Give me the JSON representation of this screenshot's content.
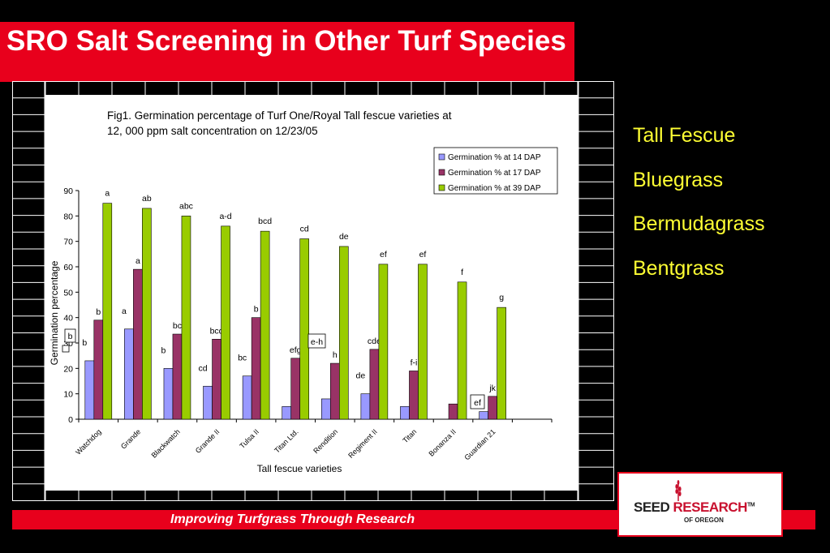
{
  "slide": {
    "title": "SRO Salt Screening in Other Turf Species",
    "species": [
      "Tall Fescue",
      "Bluegrass",
      "Bermudagrass",
      "Bentgrass"
    ],
    "footer": "Improving Turfgrass Through Research",
    "logo": {
      "seed": "SEED",
      "research": "RESEARCH",
      "tm": "TM",
      "of_oregon": "OF OREGON"
    },
    "colors": {
      "red": "#e8001c",
      "species_text": "#ffff33",
      "background": "#000000"
    }
  },
  "chart_data": {
    "type": "bar",
    "title": "Fig1. Germination percentage of Turf One/Royal Tall fescue varieties at 12, 000 ppm salt concentration on 12/23/05",
    "title_lines": [
      "Fig1. Germination percentage of Turf One/Royal Tall fescue varieties at",
      "12, 000 ppm salt concentration on 12/23/05"
    ],
    "xlabel": "Tall fescue varieties",
    "ylabel": "Germination percentage",
    "ylim": [
      0,
      90
    ],
    "yticks": [
      0,
      10,
      20,
      30,
      40,
      50,
      60,
      70,
      80,
      90
    ],
    "grid": false,
    "legend_position": "top-right",
    "categories": [
      "Watchdog",
      "Grande",
      "Blackwatch",
      "Grande II",
      "Tulsa II",
      "Titan Ltd.",
      "Rendition",
      "Regiment II",
      "Titan",
      "Bonanza II",
      "Guardian 21"
    ],
    "series": [
      {
        "name": "Germination % at 14 DAP",
        "color": "#9999ff",
        "values": [
          23,
          35.5,
          20,
          13,
          17,
          5,
          8,
          10,
          5,
          0,
          3
        ],
        "letters": [
          "b",
          "a",
          "b",
          "cd",
          "bc",
          "",
          "",
          "de",
          "",
          "",
          ""
        ]
      },
      {
        "name": "Germination % at 17 DAP",
        "color": "#993366",
        "values": [
          39,
          59,
          33.5,
          31.5,
          40,
          24,
          22,
          27.5,
          19,
          6,
          9
        ],
        "letters": [
          "b",
          "a",
          "bc",
          "bcd",
          "b",
          "efg",
          "h",
          "cde",
          "f-i",
          "",
          "jk"
        ]
      },
      {
        "name": "Germination % at 39 DAP",
        "color": "#99cc00",
        "values": [
          85,
          83,
          80,
          76,
          74,
          71,
          68,
          61,
          61,
          54,
          44
        ],
        "letters": [
          "a",
          "ab",
          "abc",
          "a-d",
          "bcd",
          "cd",
          "de",
          "ef",
          "ef",
          "f",
          "g"
        ]
      }
    ],
    "boxed_annotations": [
      "b",
      "e-h",
      "ef"
    ]
  }
}
